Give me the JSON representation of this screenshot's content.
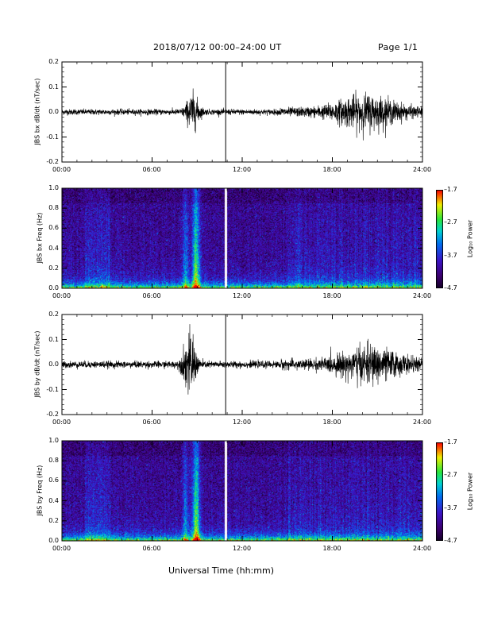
{
  "header": {
    "title": "2018/07/12   00:00–24:00 UT",
    "page": "Page 1/1"
  },
  "x_axis_title": "Universal Time (hh:mm)",
  "x_ticks": [
    "00:00",
    "06:00",
    "12:00",
    "18:00",
    "24:00"
  ],
  "colorbar": {
    "title": "Log₁₀ Power",
    "ticks": [
      "-1.7",
      "-2.7",
      "-3.7",
      "-4.7"
    ]
  },
  "chart_data": [
    {
      "type": "line",
      "ylabel": "JBS bx dB/dt (nT/sec)",
      "xlim": [
        0,
        24
      ],
      "ylim": [
        -0.2,
        0.2
      ],
      "y_ticks": [
        "0.2",
        "0.1",
        "0.0",
        "-0.1",
        "-0.2"
      ],
      "data_gap_hour": 10.9,
      "activity_bursts": [
        {
          "x_center": 8.7,
          "amplitude": 0.06
        },
        {
          "x_center": 20.2,
          "amplitude": 0.05
        }
      ],
      "baseline_noise_amplitude": 0.01
    },
    {
      "type": "heatmap",
      "ylabel": "JBS bx Freq (Hz)",
      "xlim": [
        0,
        24
      ],
      "ylim": [
        0.0,
        1.0
      ],
      "y_ticks": [
        "1.0",
        "0.8",
        "0.6",
        "0.4",
        "0.2",
        "0.0"
      ],
      "color_range": [
        -4.7,
        -1.7
      ],
      "data_gap_hour": 10.9
    },
    {
      "type": "line",
      "ylabel": "JBS by dB/dt (nT/sec)",
      "xlim": [
        0,
        24
      ],
      "ylim": [
        -0.2,
        0.2
      ],
      "y_ticks": [
        "0.2",
        "0.1",
        "0.0",
        "-0.1",
        "-0.2"
      ],
      "data_gap_hour": 10.9,
      "activity_bursts": [
        {
          "x_center": 8.5,
          "amplitude": 0.1
        },
        {
          "x_center": 20.5,
          "amplitude": 0.05
        }
      ],
      "baseline_noise_amplitude": 0.012
    },
    {
      "type": "heatmap",
      "ylabel": "JBS by Freq (Hz)",
      "xlim": [
        0,
        24
      ],
      "ylim": [
        0.0,
        1.0
      ],
      "y_ticks": [
        "1.0",
        "0.8",
        "0.6",
        "0.4",
        "0.2",
        "0.0"
      ],
      "color_range": [
        -4.7,
        -1.7
      ],
      "data_gap_hour": 10.9
    }
  ]
}
